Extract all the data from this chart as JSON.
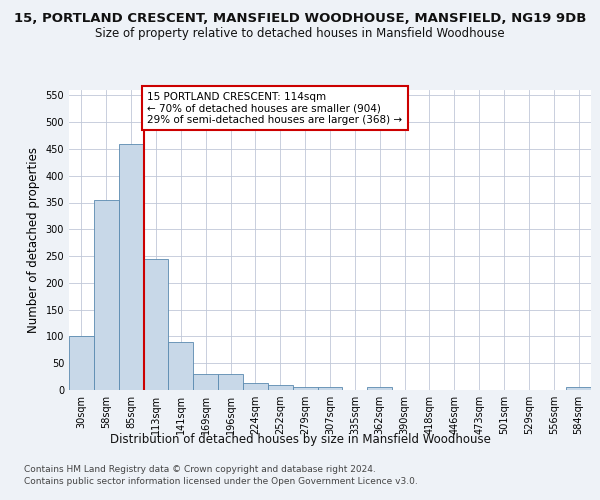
{
  "title": "15, PORTLAND CRESCENT, MANSFIELD WOODHOUSE, MANSFIELD, NG19 9DB",
  "subtitle": "Size of property relative to detached houses in Mansfield Woodhouse",
  "xlabel": "Distribution of detached houses by size in Mansfield Woodhouse",
  "ylabel": "Number of detached properties",
  "footer1": "Contains HM Land Registry data © Crown copyright and database right 2024.",
  "footer2": "Contains public sector information licensed under the Open Government Licence v3.0.",
  "bin_labels": [
    "30sqm",
    "58sqm",
    "85sqm",
    "113sqm",
    "141sqm",
    "169sqm",
    "196sqm",
    "224sqm",
    "252sqm",
    "279sqm",
    "307sqm",
    "335sqm",
    "362sqm",
    "390sqm",
    "418sqm",
    "446sqm",
    "473sqm",
    "501sqm",
    "529sqm",
    "556sqm",
    "584sqm"
  ],
  "bar_values": [
    100,
    355,
    460,
    245,
    90,
    30,
    30,
    14,
    10,
    5,
    5,
    0,
    5,
    0,
    0,
    0,
    0,
    0,
    0,
    0,
    5
  ],
  "bar_color": "#c8d8e8",
  "bar_edge_color": "#5a8ab0",
  "property_line_x": 3,
  "annotation_text": "15 PORTLAND CRESCENT: 114sqm\n← 70% of detached houses are smaller (904)\n29% of semi-detached houses are larger (368) →",
  "annotation_box_color": "#ffffff",
  "annotation_box_edge_color": "#cc0000",
  "vline_color": "#cc0000",
  "ylim": [
    0,
    560
  ],
  "yticks": [
    0,
    50,
    100,
    150,
    200,
    250,
    300,
    350,
    400,
    450,
    500,
    550
  ],
  "background_color": "#eef2f7",
  "plot_bg_color": "#ffffff",
  "title_fontsize": 9.5,
  "subtitle_fontsize": 8.5,
  "ylabel_fontsize": 8.5,
  "xlabel_fontsize": 8.5,
  "tick_fontsize": 7,
  "annotation_fontsize": 7.5,
  "footer_fontsize": 6.5
}
